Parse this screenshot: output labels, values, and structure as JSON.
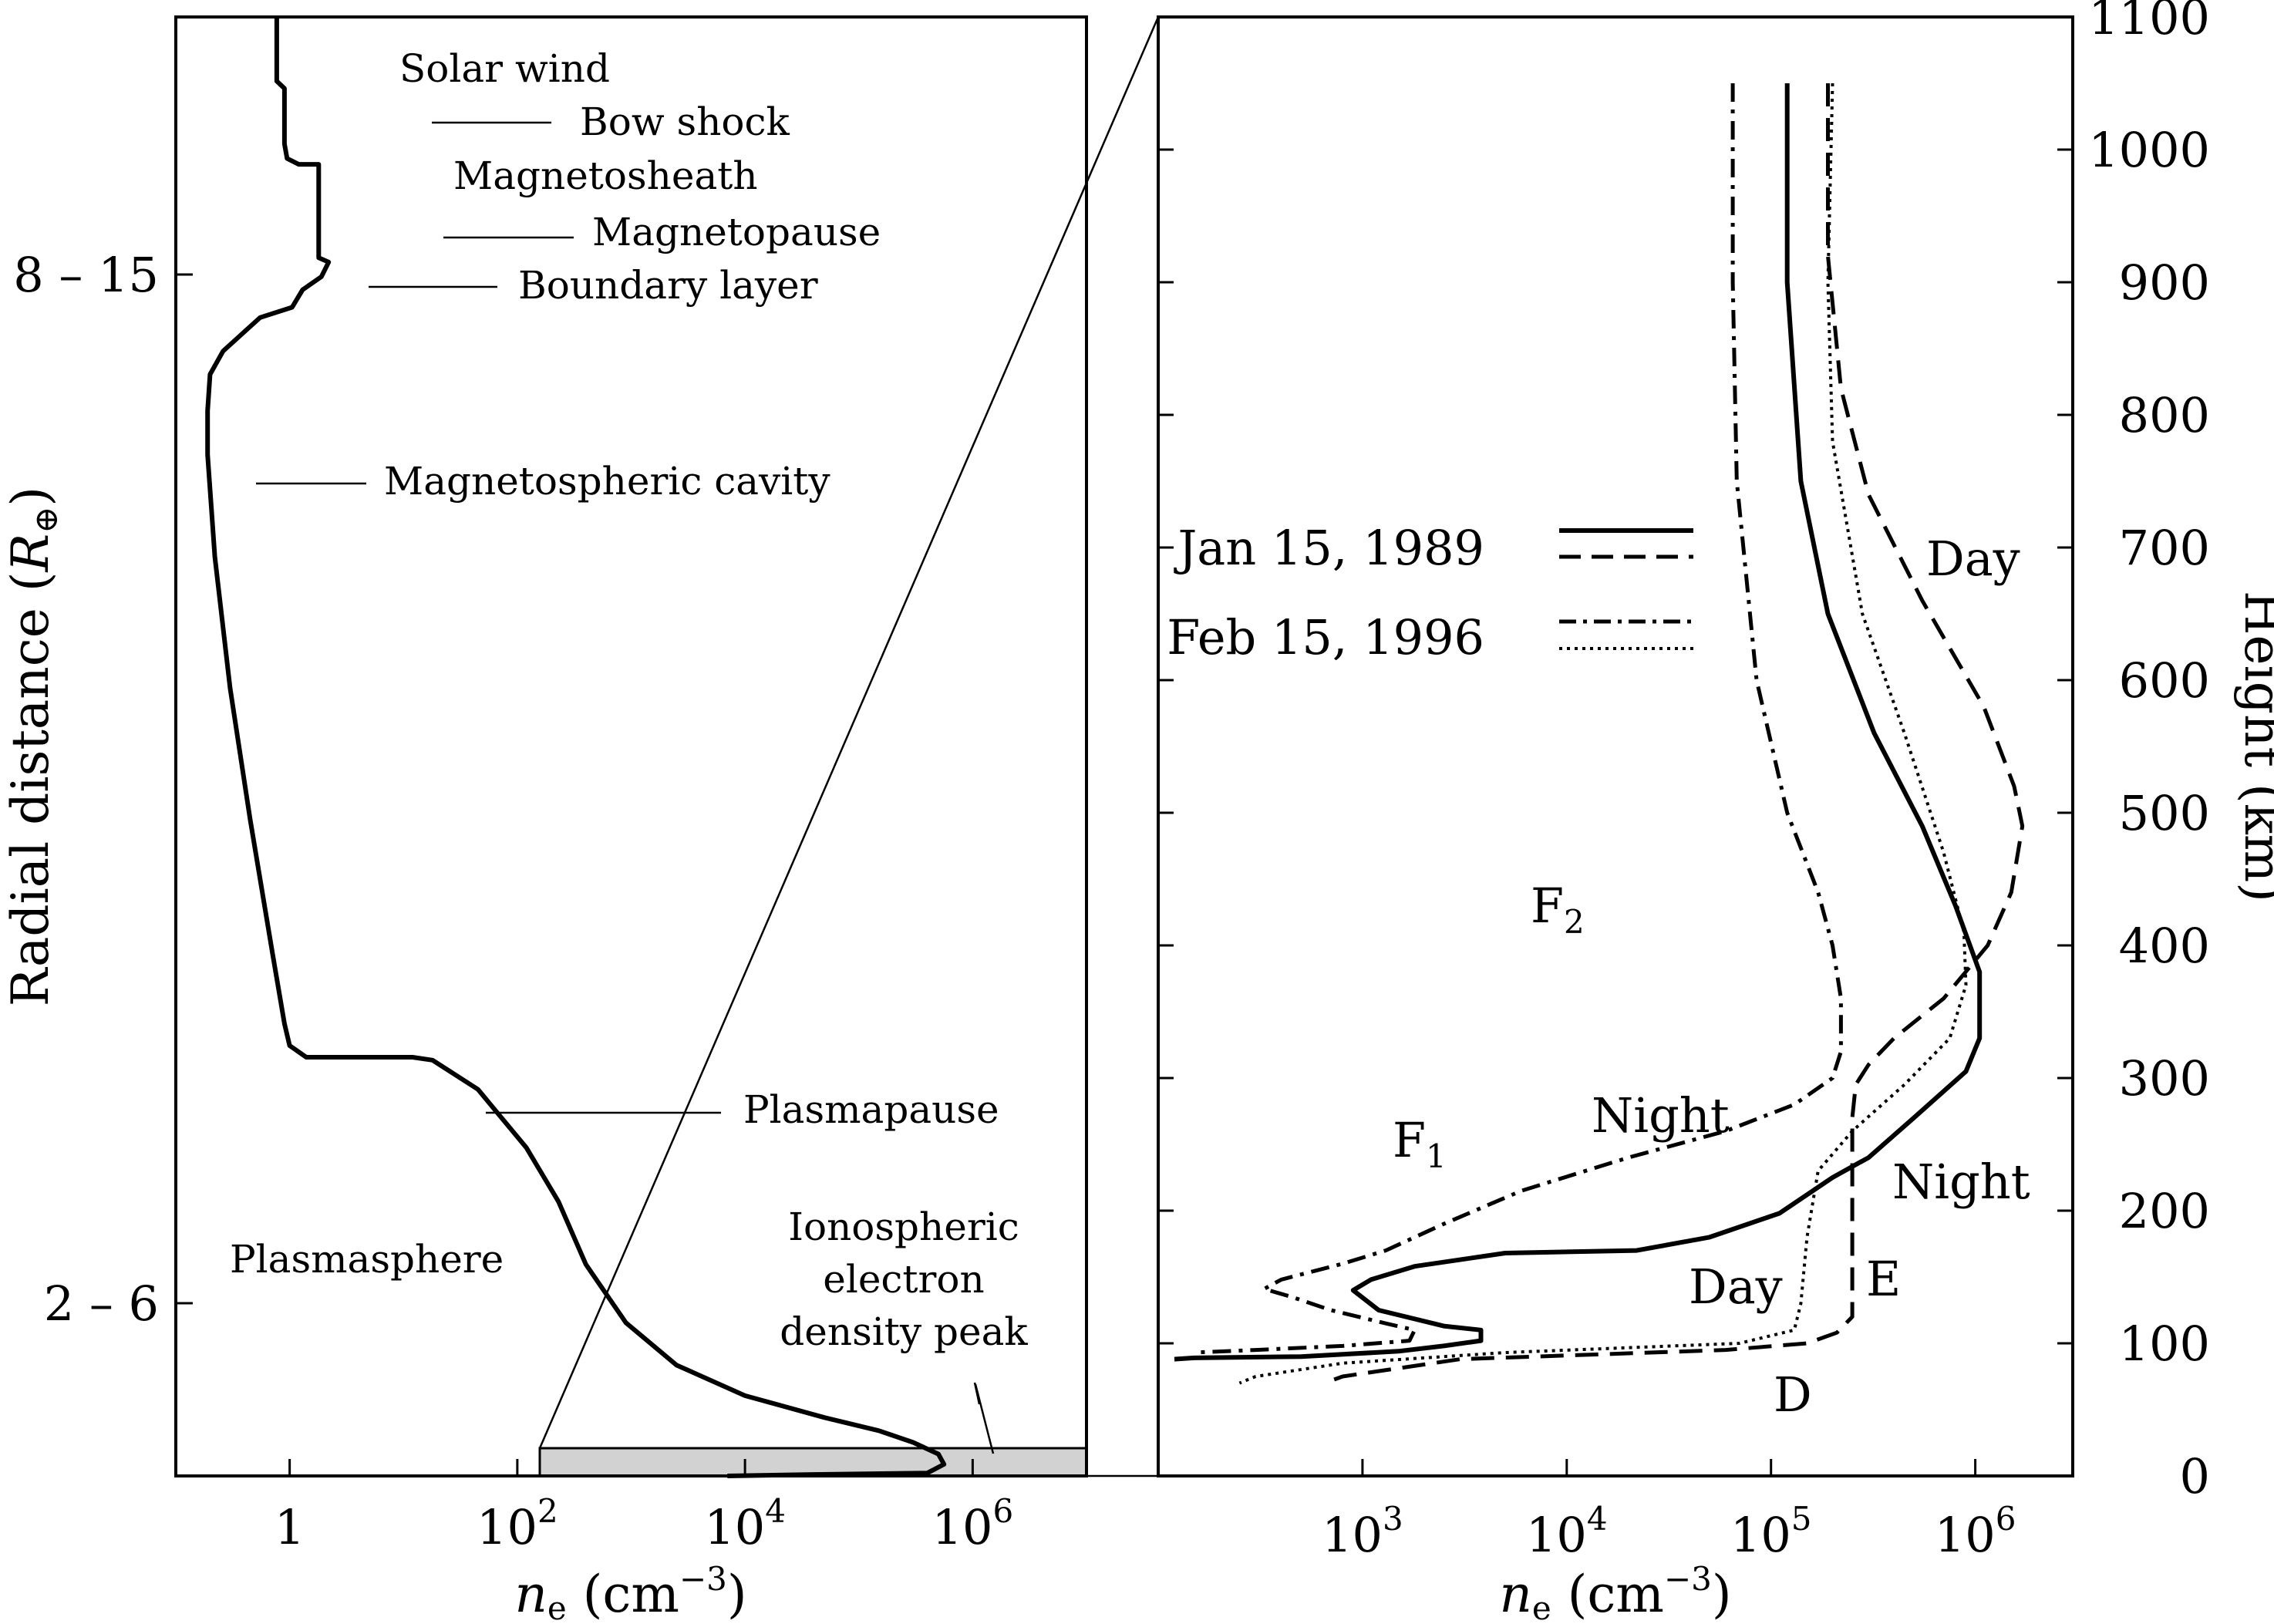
{
  "chart_data": [
    {
      "panel": "left",
      "type": "line",
      "xscale": "log",
      "xlim": [
        0.1,
        10000000
      ],
      "xticks": [
        1,
        100,
        10000,
        1000000
      ],
      "xtick_labels": [
        {
          "base": "1",
          "exp": ""
        },
        {
          "base": "10",
          "exp": "2"
        },
        {
          "base": "10",
          "exp": "4"
        },
        {
          "base": "10",
          "exp": "6"
        }
      ],
      "xlabel": {
        "var": "n",
        "sub": "e",
        "rest": " (cm",
        "exp": "−3",
        "close": ")"
      },
      "ylabel": {
        "main": "Radial distance (",
        "var": "R",
        "sub": "⊕",
        "close": ")"
      },
      "ytick_labels": [
        "8 – 15",
        "2 – 6"
      ],
      "series": [
        {
          "style": "solid",
          "points_ne": [
            [
              0.77,
              100
            ],
            [
              0.77,
              95.6
            ],
            [
              0.9,
              95.1
            ],
            [
              0.9,
              91.3
            ],
            [
              0.95,
              90.3
            ],
            [
              1.2,
              89.9
            ],
            [
              1.8,
              89.9
            ],
            [
              1.8,
              84.3
            ],
            [
              1.8,
              83.5
            ],
            [
              2.2,
              83.2
            ],
            [
              1.9,
              82.2
            ],
            [
              1.3,
              81.3
            ],
            [
              1.05,
              80.1
            ],
            [
              0.55,
              79.4
            ],
            [
              0.41,
              78.5
            ],
            [
              0.26,
              77.1
            ],
            [
              0.2,
              75.5
            ],
            [
              0.19,
              73
            ],
            [
              0.19,
              70
            ],
            [
              0.22,
              63
            ],
            [
              0.3,
              54
            ],
            [
              0.45,
              45
            ],
            [
              0.7,
              36
            ],
            [
              0.9,
              31
            ],
            [
              1,
              29.5
            ],
            [
              1.4,
              28.7
            ],
            [
              12,
              28.7
            ],
            [
              18,
              28.5
            ],
            [
              45,
              26.5
            ],
            [
              120,
              22.5
            ],
            [
              230,
              18.8
            ],
            [
              400,
              14.5
            ],
            [
              900,
              10.5
            ],
            [
              2500,
              7.6
            ],
            [
              10000,
              5.5
            ],
            [
              50000,
              4
            ],
            [
              150000,
              3.1
            ],
            [
              300000,
              2.3
            ],
            [
              500000,
              1.5
            ],
            [
              560000,
              0.8
            ],
            [
              400000,
              0.2
            ],
            [
              40000,
              0.1
            ],
            [
              7000,
              0
            ]
          ]
        }
      ],
      "shaded_band_x": [
        100,
        10000000
      ],
      "annotations": [
        "Solar wind",
        "Bow shock",
        "Magnetosheath",
        "Magnetopause",
        "Boundary layer",
        "Magnetospheric cavity",
        "Plasmapause",
        "Plasmasphere",
        "Ionospheric",
        "electron",
        "density peak"
      ]
    },
    {
      "panel": "right",
      "type": "line",
      "xscale": "log",
      "xlim": [
        100,
        3000000
      ],
      "xticks": [
        1000,
        10000,
        100000,
        1000000
      ],
      "xtick_labels": [
        {
          "base": "10",
          "exp": "3"
        },
        {
          "base": "10",
          "exp": "4"
        },
        {
          "base": "10",
          "exp": "5"
        },
        {
          "base": "10",
          "exp": "6"
        }
      ],
      "xlabel": {
        "var": "n",
        "sub": "e",
        "rest": " (cm",
        "exp": "−3",
        "close": ")"
      },
      "ylabel": "Height (km)",
      "ylim": [
        0,
        1100
      ],
      "yticks": [
        0,
        100,
        200,
        300,
        400,
        500,
        600,
        700,
        800,
        900,
        1000,
        1100
      ],
      "legend": {
        "placement": "top-left",
        "entries": [
          {
            "label": "Jan 15, 1989",
            "styles": [
              "solid",
              "dashed"
            ]
          },
          {
            "label": "Feb 15, 1996",
            "styles": [
              "dashdot",
              "dotted"
            ]
          }
        ]
      },
      "series": [
        {
          "date": "Jan 15, 1989",
          "time": "Night",
          "style": "solid",
          "points": [
            [
              120000,
              1050
            ],
            [
              120000,
              900
            ],
            [
              140000,
              750
            ],
            [
              190000,
              650
            ],
            [
              320000,
              560
            ],
            [
              550000,
              490
            ],
            [
              800000,
              430
            ],
            [
              1050000,
              380
            ],
            [
              1050000,
              330
            ],
            [
              900000,
              305
            ],
            [
              500000,
              270
            ],
            [
              300000,
              240
            ],
            [
              200000,
              225
            ],
            [
              110000,
              198
            ],
            [
              50000,
              180
            ],
            [
              22000,
              170
            ],
            [
              5000,
              168
            ],
            [
              1800,
              158
            ],
            [
              1100,
              148
            ],
            [
              900,
              140
            ],
            [
              1200,
              125
            ],
            [
              2500,
              113
            ],
            [
              3800,
              110
            ],
            [
              3800,
              102
            ],
            [
              2500,
              98
            ],
            [
              1500,
              94
            ],
            [
              500,
              90
            ],
            [
              150,
              89
            ],
            [
              120,
              88
            ]
          ]
        },
        {
          "date": "Jan 15, 1989",
          "time": "Day",
          "style": "dashed",
          "points": [
            [
              190000,
              1050
            ],
            [
              190000,
              920
            ],
            [
              220000,
              820
            ],
            [
              300000,
              740
            ],
            [
              550000,
              660
            ],
            [
              1100000,
              580
            ],
            [
              1550000,
              520
            ],
            [
              1700000,
              490
            ],
            [
              1500000,
              440
            ],
            [
              1150000,
              400
            ],
            [
              700000,
              360
            ],
            [
              400000,
              330
            ],
            [
              300000,
              310
            ],
            [
              260000,
              295
            ],
            [
              250000,
              270
            ],
            [
              250000,
              120
            ],
            [
              210000,
              108
            ],
            [
              150000,
              100
            ],
            [
              60000,
              95
            ],
            [
              3000,
              88
            ],
            [
              800,
              75
            ],
            [
              650,
              70
            ]
          ]
        },
        {
          "date": "Feb 15, 1996",
          "time": "Night",
          "style": "dashdot",
          "points": [
            [
              65000,
              1050
            ],
            [
              65000,
              900
            ],
            [
              68000,
              750
            ],
            [
              85000,
              600
            ],
            [
              120000,
              500
            ],
            [
              170000,
              440
            ],
            [
              200000,
              400
            ],
            [
              220000,
              360
            ],
            [
              220000,
              320
            ],
            [
              200000,
              300
            ],
            [
              130000,
              280
            ],
            [
              60000,
              260
            ],
            [
              20000,
              240
            ],
            [
              6000,
              215
            ],
            [
              2500,
              190
            ],
            [
              1300,
              170
            ],
            [
              800,
              160
            ],
            [
              400,
              148
            ],
            [
              330,
              141
            ],
            [
              450,
              135
            ],
            [
              700,
              125
            ],
            [
              1300,
              115
            ],
            [
              1800,
              110
            ],
            [
              1700,
              102
            ],
            [
              800,
              98
            ],
            [
              300,
              95
            ],
            [
              150,
              93
            ]
          ]
        },
        {
          "date": "Feb 15, 1996",
          "time": "Day",
          "style": "dotted",
          "points": [
            [
              200000,
              1050
            ],
            [
              190000,
              900
            ],
            [
              200000,
              780
            ],
            [
              280000,
              650
            ],
            [
              450000,
              560
            ],
            [
              700000,
              470
            ],
            [
              880000,
              410
            ],
            [
              900000,
              370
            ],
            [
              750000,
              330
            ],
            [
              450000,
              295
            ],
            [
              250000,
              260
            ],
            [
              170000,
              230
            ],
            [
              150000,
              180
            ],
            [
              140000,
              130
            ],
            [
              130000,
              110
            ],
            [
              70000,
              100
            ],
            [
              5000,
              93
            ],
            [
              800,
              85
            ],
            [
              300,
              75
            ],
            [
              250,
              70
            ]
          ]
        }
      ],
      "annotations": [
        {
          "text": "Day"
        },
        {
          "text": "Night"
        },
        {
          "text": "Night"
        },
        {
          "text": "Day"
        },
        {
          "text": "E"
        },
        {
          "text": "D"
        },
        {
          "text": "F",
          "sub": "2"
        },
        {
          "text": "F",
          "sub": "1"
        }
      ]
    }
  ]
}
